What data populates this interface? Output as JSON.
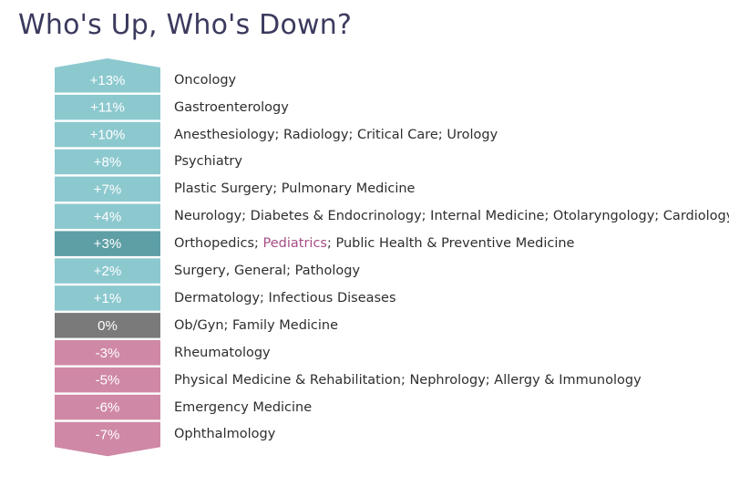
{
  "title": "Who's Up, Who's Down?",
  "colors": {
    "up": "#8cc9cf",
    "highlight": "#5e9fa5",
    "neutral": "#7a7a7a",
    "down": "#cf88a6",
    "text_highlight": "#a64d83"
  },
  "rows": [
    {
      "value": "+13%",
      "tone": "up",
      "label": [
        {
          "text": "Oncology"
        }
      ]
    },
    {
      "value": "+11%",
      "tone": "up",
      "label": [
        {
          "text": "Gastroenterology"
        }
      ]
    },
    {
      "value": "+10%",
      "tone": "up",
      "label": [
        {
          "text": "Anesthesiology; Radiology; Critical Care; Urology"
        }
      ]
    },
    {
      "value": "+8%",
      "tone": "up",
      "label": [
        {
          "text": "Psychiatry"
        }
      ]
    },
    {
      "value": "+7%",
      "tone": "up",
      "label": [
        {
          "text": "Plastic Surgery; Pulmonary Medicine"
        }
      ]
    },
    {
      "value": "+4%",
      "tone": "up",
      "label": [
        {
          "text": "Neurology; Diabetes & Endocrinology; Internal Medicine; Otolaryngology; Cardiology"
        }
      ]
    },
    {
      "value": "+3%",
      "tone": "highlight",
      "label": [
        {
          "text": "Orthopedics; "
        },
        {
          "text": "Pediatrics",
          "highlight": true
        },
        {
          "text": "; Public Health & Preventive Medicine"
        }
      ]
    },
    {
      "value": "+2%",
      "tone": "up",
      "label": [
        {
          "text": "Surgery, General; Pathology"
        }
      ]
    },
    {
      "value": "+1%",
      "tone": "up",
      "label": [
        {
          "text": "Dermatology; Infectious Diseases"
        }
      ]
    },
    {
      "value": "0%",
      "tone": "neutral",
      "label": [
        {
          "text": "Ob/Gyn; Family Medicine"
        }
      ]
    },
    {
      "value": "-3%",
      "tone": "down",
      "label": [
        {
          "text": "Rheumatology"
        }
      ]
    },
    {
      "value": "-5%",
      "tone": "down",
      "label": [
        {
          "text": "Physical Medicine & Rehabilitation; Nephrology; Allergy & Immunology"
        }
      ]
    },
    {
      "value": "-6%",
      "tone": "down",
      "label": [
        {
          "text": "Emergency Medicine"
        }
      ]
    },
    {
      "value": "-7%",
      "tone": "down",
      "label": [
        {
          "text": "Ophthalmology"
        }
      ]
    }
  ]
}
